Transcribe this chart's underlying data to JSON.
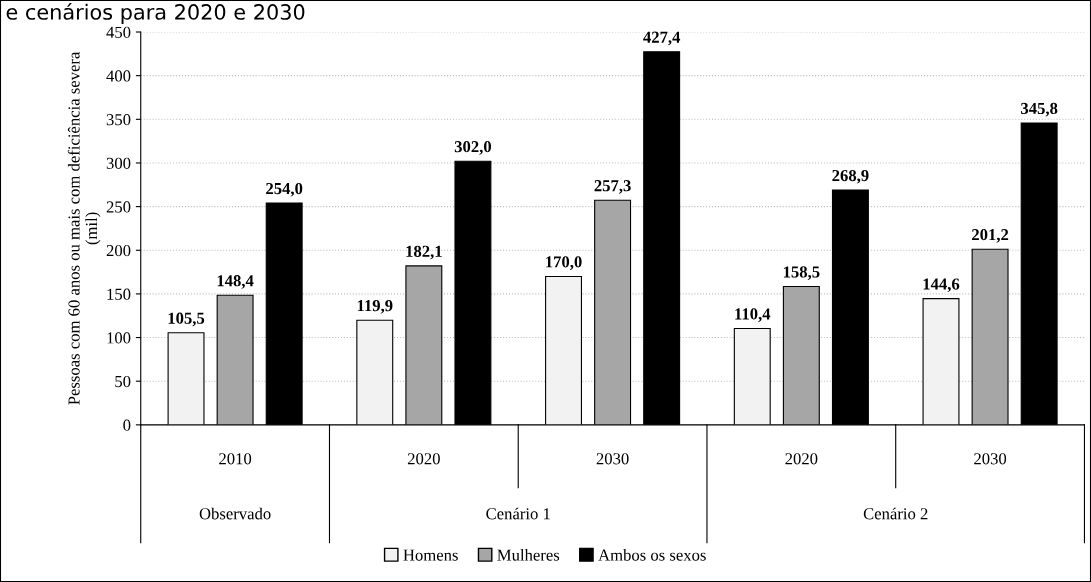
{
  "chart_data": {
    "type": "bar",
    "title": "e cenários para 2020 e 2030",
    "ylabel": "Pessoas com 60 anos ou mais com deficiência severa\n(mil)",
    "categories": [
      "2010",
      "2020",
      "2030",
      "2020",
      "2030"
    ],
    "series": [
      {
        "name": "Homens",
        "color": "#f2f2f2",
        "values": [
          105.5,
          119.9,
          170.0,
          110.4,
          144.6
        ],
        "value_labels": [
          "105,5",
          "119,9",
          "170,0",
          "110,4",
          "144,6"
        ]
      },
      {
        "name": "Mulheres",
        "color": "#a6a6a6",
        "values": [
          148.4,
          182.1,
          257.3,
          158.5,
          201.2
        ],
        "value_labels": [
          "148,4",
          "182,1",
          "257,3",
          "158,5",
          "201,2"
        ]
      },
      {
        "name": "Ambos os sexos",
        "color": "#000000",
        "values": [
          254.0,
          302.0,
          427.4,
          268.9,
          345.8
        ],
        "value_labels": [
          "254,0",
          "302,0",
          "427,4",
          "268,9",
          "345,8"
        ]
      }
    ],
    "annotations": [
      "Observado",
      "Cenário 1",
      "Cenário 2"
    ],
    "ylim": [
      0,
      450
    ],
    "yticks": [
      0,
      50,
      100,
      150,
      200,
      250,
      300,
      350,
      400,
      450
    ],
    "grid": "y",
    "legend": "bottom"
  }
}
